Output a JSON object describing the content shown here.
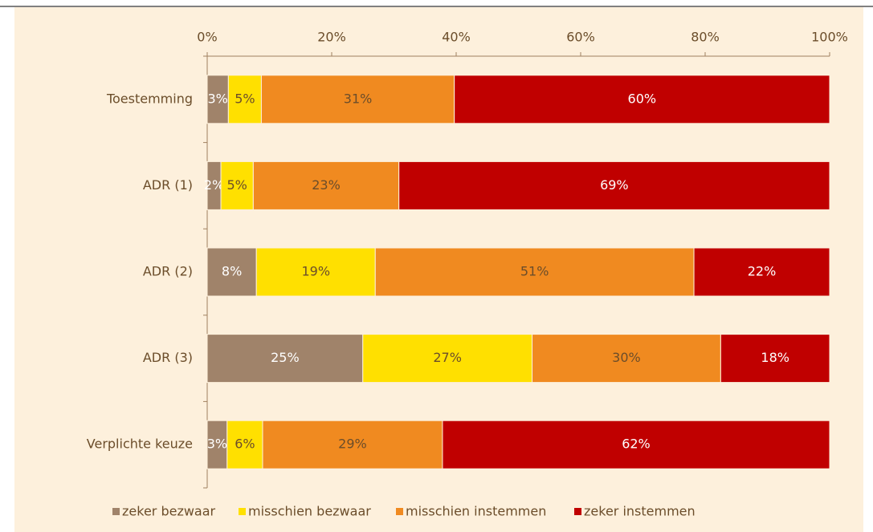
{
  "chart_data": {
    "type": "stacked_bar_horizontal",
    "categories": [
      "Toestemming",
      "ADR (1)",
      "ADR (2)",
      "ADR (3)",
      "Verplichte keuze"
    ],
    "series": [
      {
        "name": "zeker bezwaar",
        "color": "#a0836a",
        "label_color": "#ffffff",
        "values": [
          3.4,
          2.2,
          7.9,
          25.0,
          3.2
        ],
        "value_labels": [
          "3%",
          "2%",
          "8%",
          "25%",
          "3%"
        ]
      },
      {
        "name": "misschien bezwaar",
        "color": "#ffe000",
        "label_color": "#6b4d2a",
        "values": [
          5.3,
          5.2,
          19.1,
          27.2,
          5.7
        ],
        "value_labels": [
          "5%",
          "5%",
          "19%",
          "27%",
          "6%"
        ]
      },
      {
        "name": "misschien instemmen",
        "color": "#f08a20",
        "label_color": "#6b4d2a",
        "values": [
          31.0,
          23.4,
          51.2,
          30.3,
          28.9
        ],
        "value_labels": [
          "31%",
          "23%",
          "51%",
          "30%",
          "29%"
        ]
      },
      {
        "name": "zeker instemmen",
        "color": "#c00000",
        "label_color": "#ffffff",
        "values": [
          60.3,
          69.2,
          21.8,
          17.5,
          62.2
        ],
        "value_labels": [
          "60%",
          "69%",
          "22%",
          "18%",
          "62%"
        ]
      }
    ],
    "xlim": [
      0,
      100
    ],
    "xticks": [
      {
        "value": 0,
        "label": "0%"
      },
      {
        "value": 20,
        "label": "20%"
      },
      {
        "value": 40,
        "label": "40%"
      },
      {
        "value": 60,
        "label": "60%"
      },
      {
        "value": 80,
        "label": "80%"
      },
      {
        "value": 100,
        "label": "100%"
      }
    ],
    "legend": "bottom"
  }
}
